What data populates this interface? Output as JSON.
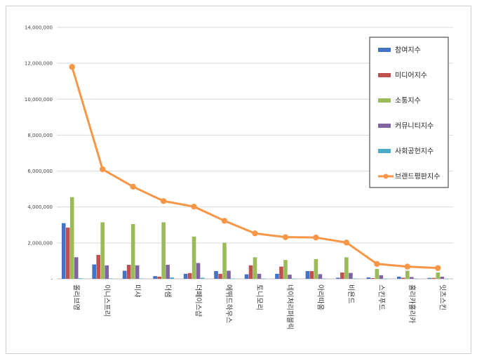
{
  "chart_data": {
    "type": "bar",
    "categories": [
      "올리브영",
      "이니스프리",
      "미샤",
      "더샘",
      "더페이스샵",
      "에뛰드하우스",
      "토니모리",
      "네이처리퍼블릭",
      "아리따움",
      "비욘드",
      "스킨푸드",
      "홀리카홀리카",
      "잇츠스킨"
    ],
    "series": [
      {
        "name": "참여지수",
        "kind": "bar",
        "color": "#4472c4",
        "values": [
          3100000,
          800000,
          450000,
          150000,
          280000,
          430000,
          250000,
          280000,
          430000,
          60000,
          80000,
          120000,
          50000
        ]
      },
      {
        "name": "미디어지수",
        "kind": "bar",
        "color": "#c0504d",
        "values": [
          2850000,
          1330000,
          780000,
          120000,
          320000,
          280000,
          750000,
          680000,
          430000,
          350000,
          40000,
          60000,
          50000
        ]
      },
      {
        "name": "소통지수",
        "kind": "bar",
        "color": "#9bbb59",
        "values": [
          4550000,
          3150000,
          3050000,
          3150000,
          2350000,
          2000000,
          1200000,
          1050000,
          1100000,
          1200000,
          550000,
          450000,
          350000
        ]
      },
      {
        "name": "커뮤니티지수",
        "kind": "bar",
        "color": "#8064a2",
        "values": [
          1200000,
          750000,
          750000,
          780000,
          880000,
          450000,
          280000,
          230000,
          260000,
          330000,
          200000,
          100000,
          120000
        ]
      },
      {
        "name": "사회공헌지수",
        "kind": "bar",
        "color": "#4bacc6",
        "values": [
          30000,
          20000,
          20000,
          80000,
          60000,
          15000,
          10000,
          10000,
          10000,
          10000,
          5000,
          5000,
          5000
        ]
      },
      {
        "name": "브랜드평판지수",
        "kind": "line",
        "color": "#f79646",
        "values": [
          11800000,
          6100000,
          5130000,
          4330000,
          4020000,
          3230000,
          2530000,
          2320000,
          2300000,
          2020000,
          830000,
          680000,
          600000
        ]
      }
    ],
    "yticks": [
      "-",
      "2,000,000",
      "4,000,000",
      "6,000,000",
      "8,000,000",
      "10,000,000",
      "12,000,000",
      "14,000,000"
    ],
    "ylim": [
      0,
      14000000
    ],
    "grid": true,
    "legend_position": "right"
  }
}
